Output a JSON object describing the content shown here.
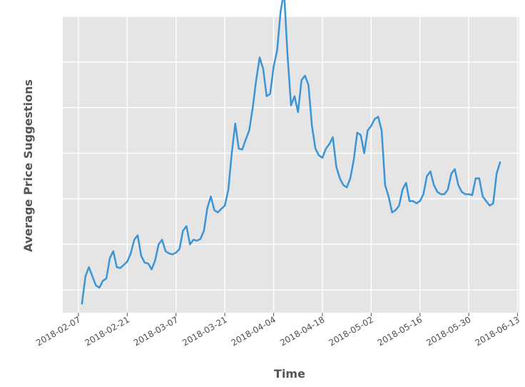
{
  "chart_data": {
    "type": "line",
    "title": "",
    "xlabel": "Time",
    "ylabel": "Average Price Suggestions",
    "x_tick_labels": [
      "2018-02-07",
      "2018-02-21",
      "2018-03-07",
      "2018-03-21",
      "2018-04-04",
      "2018-04-18",
      "2018-05-02",
      "2018-05-16",
      "2018-05-30",
      "2018-06-13"
    ],
    "x_tick_days": [
      0,
      14,
      28,
      42,
      56,
      70,
      84,
      98,
      112,
      126
    ],
    "xlim": [
      -4.5,
      126.5
    ],
    "ylim": [
      0,
      6.5
    ],
    "y_gridlines": [
      0.5,
      1.5,
      2.5,
      3.5,
      4.5,
      5.5,
      6.5
    ],
    "y_tick_labels_shown": false,
    "grid": true,
    "background": "#e5e5e5",
    "line_color": "#3a94d6",
    "series": [
      {
        "x": [
          1,
          2,
          3,
          4,
          5,
          6,
          7,
          8,
          9,
          10,
          11,
          12,
          13,
          14,
          15,
          16,
          17,
          18,
          19,
          20,
          21,
          22,
          23,
          24,
          25,
          26,
          27,
          28,
          29,
          30,
          31,
          32,
          33,
          34,
          35,
          36,
          37,
          38,
          39,
          40,
          41,
          42,
          43,
          44,
          45,
          46,
          47,
          48,
          49,
          50,
          51,
          52,
          53,
          54,
          55,
          56,
          57,
          58,
          59,
          60,
          61,
          62,
          63,
          64,
          65,
          66,
          67,
          68,
          69,
          70,
          71,
          72,
          73,
          74,
          75,
          76,
          77,
          78,
          79,
          80,
          81,
          82,
          83,
          84,
          85,
          86,
          87,
          88,
          89,
          90,
          91,
          92,
          93,
          94,
          95,
          96,
          97,
          98,
          99,
          100,
          101,
          102,
          103,
          104,
          105,
          106,
          107,
          108,
          109,
          110,
          111,
          112,
          113,
          114,
          115,
          116,
          117,
          118,
          119,
          120,
          121
        ],
        "values": [
          0.2,
          0.8,
          1.0,
          0.8,
          0.6,
          0.55,
          0.7,
          0.75,
          1.2,
          1.35,
          1.0,
          0.98,
          1.05,
          1.12,
          1.3,
          1.6,
          1.7,
          1.25,
          1.1,
          1.08,
          0.95,
          1.15,
          1.5,
          1.6,
          1.35,
          1.3,
          1.28,
          1.32,
          1.4,
          1.8,
          1.9,
          1.5,
          1.6,
          1.58,
          1.62,
          1.8,
          2.3,
          2.55,
          2.25,
          2.2,
          2.28,
          2.35,
          2.7,
          3.5,
          4.15,
          3.6,
          3.58,
          3.8,
          4.0,
          4.5,
          5.1,
          5.6,
          5.35,
          4.75,
          4.8,
          5.4,
          5.75,
          6.6,
          7.05,
          5.65,
          4.55,
          4.75,
          4.4,
          5.1,
          5.2,
          5.0,
          4.1,
          3.6,
          3.45,
          3.4,
          3.6,
          3.7,
          3.85,
          3.2,
          2.95,
          2.8,
          2.75,
          2.95,
          3.35,
          3.95,
          3.9,
          3.5,
          4.0,
          4.1,
          4.25,
          4.3,
          4.0,
          2.8,
          2.55,
          2.2,
          2.25,
          2.35,
          2.7,
          2.85,
          2.45,
          2.45,
          2.4,
          2.45,
          2.6,
          3.0,
          3.1,
          2.8,
          2.65,
          2.6,
          2.6,
          2.7,
          3.05,
          3.15,
          2.8,
          2.65,
          2.6,
          2.6,
          2.58,
          2.95,
          2.95,
          2.55,
          2.45,
          2.35,
          2.4,
          3.05,
          3.3
        ]
      }
    ]
  }
}
